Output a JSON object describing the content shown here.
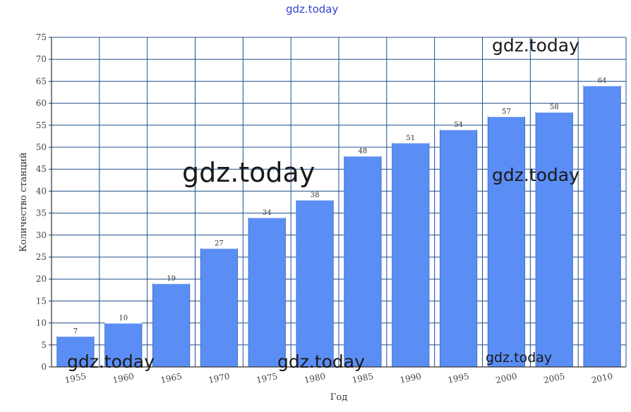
{
  "watermarks": {
    "top": "gdz.today",
    "upper_right": "gdz.today",
    "middle_left": "gdz.today",
    "middle_right": "gdz.today",
    "bottom_left": "gdz.today",
    "bottom_center": "gdz.today",
    "bottom_right": "gdz.today"
  },
  "chart_data": {
    "type": "bar",
    "title": "",
    "xlabel": "Год",
    "ylabel": "Количество станций",
    "categories": [
      "1955",
      "1960",
      "1965",
      "1970",
      "1975",
      "1980",
      "1985",
      "1990",
      "1995",
      "2000",
      "2005",
      "2010"
    ],
    "values": [
      7,
      10,
      19,
      27,
      34,
      38,
      48,
      51,
      54,
      57,
      58,
      64
    ],
    "ylim": [
      0,
      75
    ],
    "yticks": [
      0,
      5,
      10,
      15,
      20,
      25,
      30,
      35,
      40,
      45,
      50,
      55,
      60,
      65,
      70,
      75
    ],
    "grid": true,
    "legend": "none",
    "colors": {
      "bar": "#5b8ef5",
      "bar_edge": "#3f6fd8",
      "grid": "#1f4f8a",
      "axis": "#333333"
    }
  }
}
